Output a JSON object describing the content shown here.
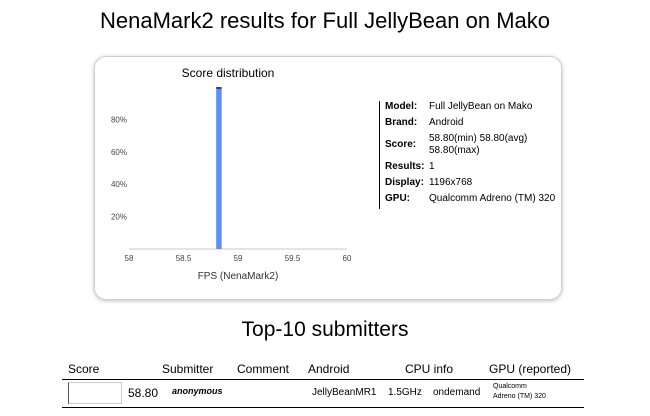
{
  "page_title": "NenaMark2 results for Full JellyBean on Mako",
  "chart_data": {
    "type": "bar",
    "title": "Score distribution",
    "xlabel": "FPS (NenaMark2)",
    "ylabel": "",
    "xlim": [
      58,
      60
    ],
    "ylim": [
      0,
      100
    ],
    "x_ticks": [
      "58",
      "58.5",
      "59",
      "59.5",
      "60"
    ],
    "y_ticks": [
      "20%",
      "40%",
      "60%",
      "80%"
    ],
    "bars": [
      {
        "x_start": 58.8,
        "x_end": 58.85,
        "value": 100
      }
    ],
    "bar_color": "#5b8ff5",
    "grid": false
  },
  "device_info": [
    {
      "key": "Model:",
      "value": "Full JellyBean on Mako"
    },
    {
      "key": "Brand:",
      "value": "Android"
    },
    {
      "key": "Score:",
      "value": "58.80(min) 58.80(avg) 58.80(max)"
    },
    {
      "key": "Results:",
      "value": "1"
    },
    {
      "key": "Display:",
      "value": "1196x768"
    },
    {
      "key": "GPU:",
      "value": "Qualcomm Adreno (TM) 320"
    }
  ],
  "submitters": {
    "title": "Top-10 submitters",
    "headers": {
      "score": "Score",
      "submitter": "Submitter",
      "comment": "Comment",
      "android": "Android",
      "cpu": "CPU info",
      "gpu": "GPU (reported)"
    },
    "rows": [
      {
        "score": "58.80",
        "submitter": "anonymous",
        "comment": "",
        "android": "JellyBeanMR1",
        "cpu_speed": "1.5GHz",
        "cpu_governor": "ondemand",
        "gpu_line1": "Qualcomm",
        "gpu_line2": "Adreno (TM) 320"
      }
    ]
  }
}
